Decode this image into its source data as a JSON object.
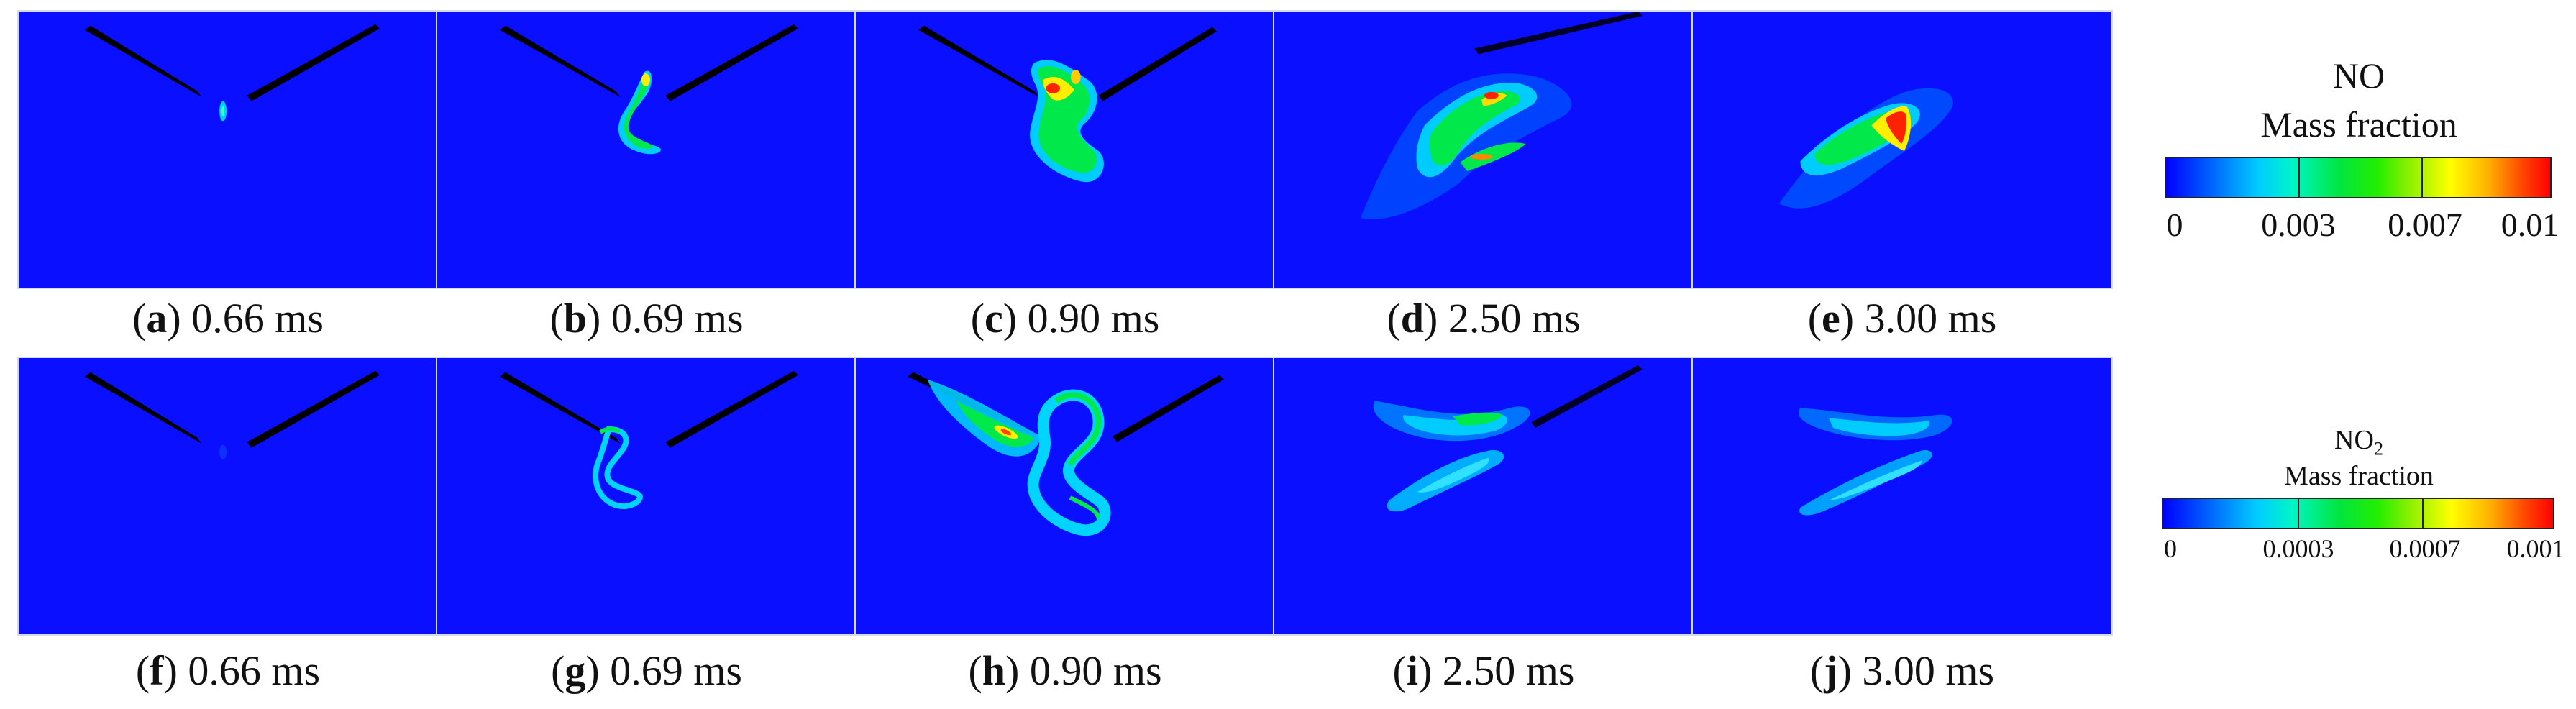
{
  "rows": [
    {
      "species": "NO",
      "panels": [
        {
          "letter": "a",
          "time": "0.66 ms"
        },
        {
          "letter": "b",
          "time": "0.69 ms"
        },
        {
          "letter": "c",
          "time": "0.90 ms"
        },
        {
          "letter": "d",
          "time": "2.50 ms"
        },
        {
          "letter": "e",
          "time": "3.00 ms"
        }
      ]
    },
    {
      "species": "NO2",
      "panels": [
        {
          "letter": "f",
          "time": "0.66 ms"
        },
        {
          "letter": "g",
          "time": "0.69 ms"
        },
        {
          "letter": "h",
          "time": "0.90 ms"
        },
        {
          "letter": "i",
          "time": "2.50 ms"
        },
        {
          "letter": "j",
          "time": "3.00 ms"
        }
      ]
    }
  ],
  "legends": [
    {
      "title_main": "NO",
      "title_sub": "",
      "subtitle": "Mass fraction",
      "ticks": [
        "0",
        "0.003",
        "0.007",
        "0.01"
      ]
    },
    {
      "title_main": "NO",
      "title_sub": "2",
      "subtitle": "Mass fraction",
      "ticks": [
        "0",
        "0.0003",
        "0.0007",
        "0.001"
      ]
    }
  ],
  "colors": {
    "field_background": "#0a10ff",
    "colormap": [
      "#0000ff",
      "#00ccff",
      "#00e640",
      "#ffff00",
      "#ff0000"
    ]
  }
}
